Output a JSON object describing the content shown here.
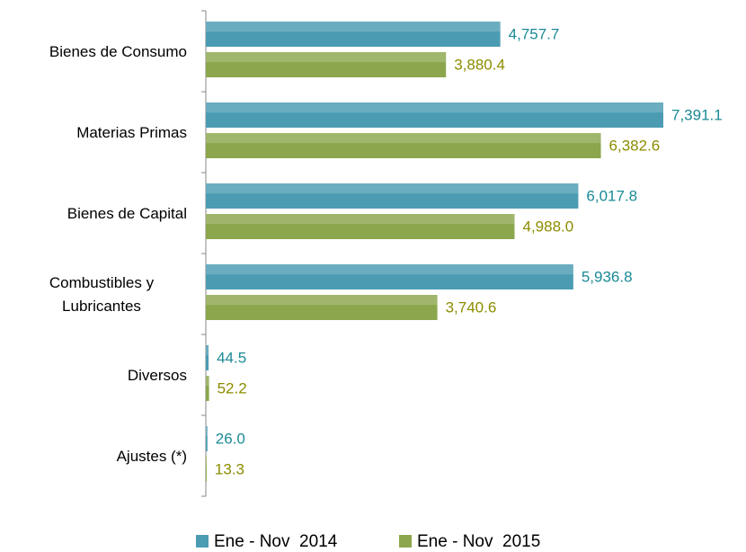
{
  "chart_data": {
    "type": "bar",
    "orientation": "horizontal",
    "categories": [
      "Bienes de Consumo",
      "Materias Primas",
      "Bienes de Capital",
      "Combustibles y Lubricantes",
      "Diversos",
      "Ajustes (*)"
    ],
    "series": [
      {
        "name": "Ene - Nov  2014",
        "color": "#4b9cb3",
        "label_color": "#1b8a96",
        "values": [
          4757.7,
          7391.1,
          6017.8,
          5936.8,
          44.5,
          26.0
        ],
        "value_labels": [
          "4,757.7",
          "7,391.1",
          "6,017.8",
          "5,936.8",
          "44.5",
          "26.0"
        ]
      },
      {
        "name": "Ene - Nov  2015",
        "color": "#8ba64c",
        "label_color": "#8c8c00",
        "values": [
          3880.4,
          6382.6,
          4988.0,
          3740.6,
          52.2,
          13.3
        ],
        "value_labels": [
          "3,880.4",
          "6,382.6",
          "4,988.0",
          "3,740.6",
          "52.2",
          "13.3"
        ]
      }
    ],
    "legend": "bottom"
  }
}
